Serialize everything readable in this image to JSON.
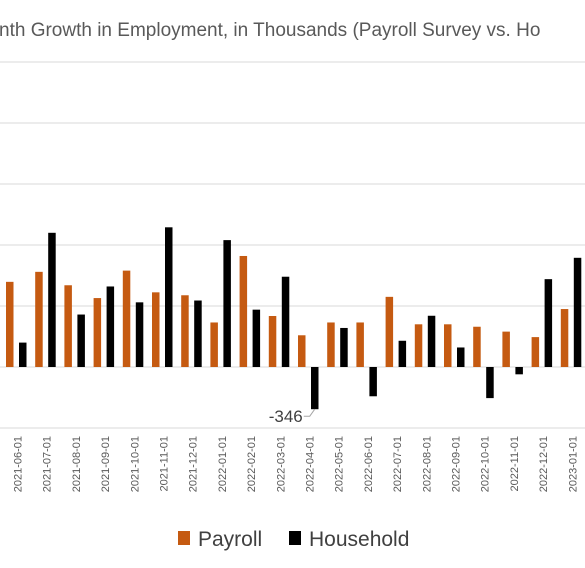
{
  "chart_data": {
    "type": "bar",
    "title": "nth Growth in Employment, in Thousands (Payroll Survey vs. Ho",
    "xlabel": "",
    "ylabel": "",
    "ylim": [
      -500,
      2500
    ],
    "y_gridline_step": 500,
    "grid": true,
    "legend": "bottom",
    "categories": [
      "2021-06-01",
      "2021-07-01",
      "2021-08-01",
      "2021-09-01",
      "2021-10-01",
      "2021-11-01",
      "2021-12-01",
      "2022-01-01",
      "2022-02-01",
      "2022-03-01",
      "2022-04-01",
      "2022-05-01",
      "2022-06-01",
      "2022-07-01",
      "2022-08-01",
      "2022-09-01",
      "2022-10-01",
      "2022-11-01",
      "2022-12-01",
      "2023-01-01"
    ],
    "series": [
      {
        "name": "Payroll",
        "color": "#C55A11",
        "values": [
          698,
          780,
          670,
          565,
          790,
          612,
          588,
          365,
          910,
          418,
          260,
          365,
          365,
          575,
          350,
          350,
          330,
          290,
          245,
          475
        ]
      },
      {
        "name": "Household",
        "color": "#000000",
        "values": [
          200,
          1100,
          430,
          660,
          530,
          1145,
          545,
          1040,
          470,
          740,
          -346,
          320,
          -240,
          215,
          420,
          160,
          -255,
          -60,
          720,
          895
        ]
      }
    ],
    "annotations": [
      {
        "text": "-346",
        "series": "Household",
        "category": "2022-04-01"
      }
    ]
  }
}
